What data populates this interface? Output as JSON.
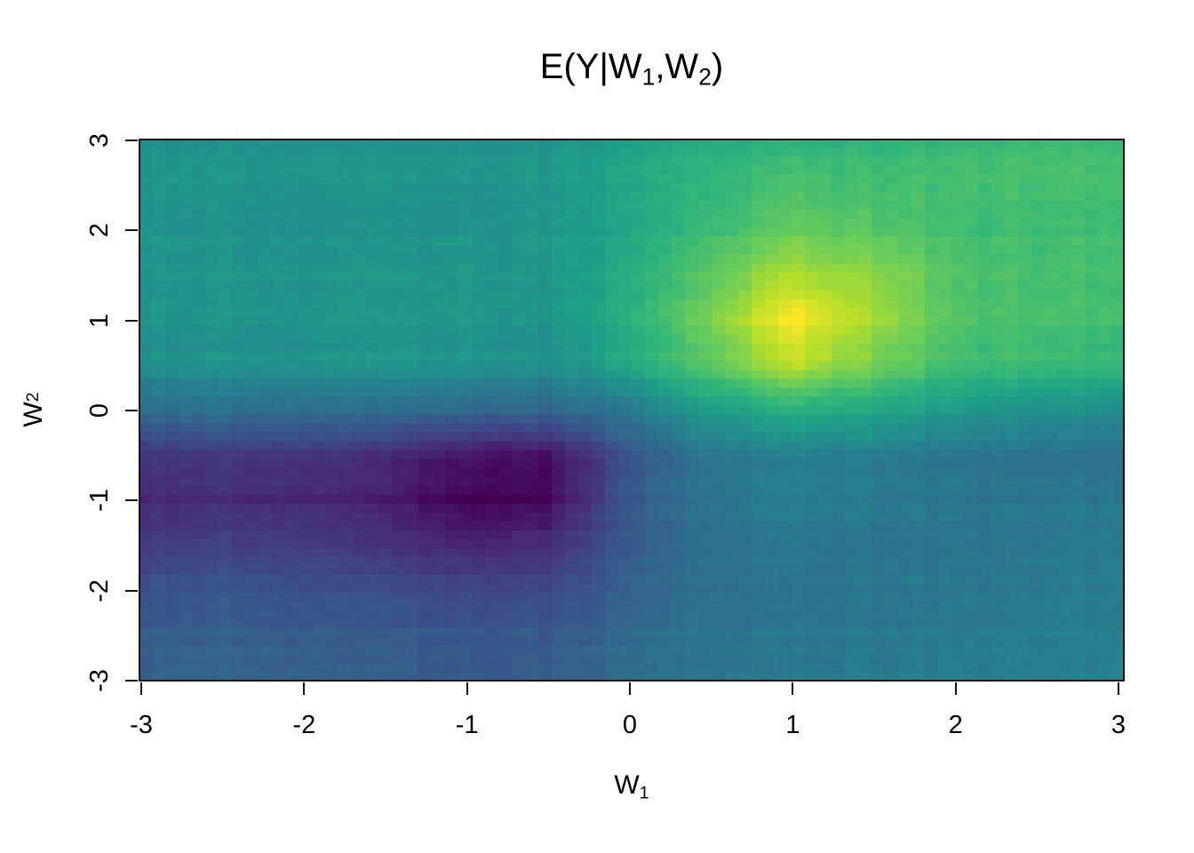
{
  "figure": {
    "background": "#ffffff",
    "title": {
      "pre": "E(Y|W",
      "sub1": "1",
      "mid": ",W",
      "sub2": "2",
      "post": ")"
    },
    "x_axis": {
      "label_pre": "W",
      "label_sub": "1"
    },
    "y_axis": {
      "label_pre": "W",
      "label_sub": "2"
    }
  },
  "chart_data": {
    "type": "heatmap",
    "title": "E(Y|W1,W2)",
    "xlabel": "W1",
    "ylabel": "W2",
    "x_range": [
      -3,
      3
    ],
    "y_range": [
      -3,
      3
    ],
    "x_ticks": [
      -3,
      -2,
      -1,
      0,
      1,
      2,
      3
    ],
    "y_ticks": [
      -3,
      -2,
      -1,
      0,
      1,
      2,
      3
    ],
    "grid": false,
    "legend": "none",
    "axis_color": "#141414",
    "colormap": {
      "name": "viridis",
      "stops": [
        "#440154",
        "#482878",
        "#3e4989",
        "#31688e",
        "#26828e",
        "#1f9e89",
        "#35b779",
        "#6ece58",
        "#b5de2b",
        "#fde725"
      ]
    },
    "z_scale": {
      "min": -2.0,
      "max": 1.9,
      "zero_color": "#21938b"
    },
    "max_point": {
      "x": 0.95,
      "y": 1.0,
      "z": 1.9
    },
    "min_point": {
      "x": -0.9,
      "y": -0.8,
      "z": -2.0
    },
    "grid_x": [
      -3,
      -2.5,
      -2,
      -1.5,
      -1,
      -0.5,
      0,
      0.5,
      1,
      1.5,
      2,
      2.5,
      3
    ],
    "grid_y_top_to_bottom": [
      3,
      2.5,
      2,
      1.5,
      1,
      0.5,
      0,
      -0.5,
      -1,
      -1.5,
      -2,
      -2.5,
      -3
    ],
    "z_rows_top_to_bottom": [
      [
        0.0,
        0.02,
        0.05,
        0.0,
        0.02,
        0.05,
        0.2,
        0.45,
        0.55,
        0.55,
        0.65,
        0.7,
        0.7
      ],
      [
        0.02,
        0.05,
        0.0,
        0.03,
        0.0,
        0.05,
        0.25,
        0.55,
        0.75,
        0.7,
        0.7,
        0.72,
        0.7
      ],
      [
        0.05,
        0.0,
        0.03,
        0.0,
        0.05,
        0.08,
        0.3,
        0.7,
        1.0,
        0.9,
        0.72,
        0.7,
        0.72
      ],
      [
        0.0,
        0.03,
        0.0,
        0.04,
        0.03,
        0.05,
        0.35,
        0.9,
        1.4,
        1.2,
        0.78,
        0.7,
        0.7
      ],
      [
        0.0,
        0.0,
        0.04,
        0.03,
        0.06,
        0.0,
        0.4,
        1.1,
        1.9,
        1.35,
        0.8,
        0.74,
        0.7
      ],
      [
        -0.05,
        0.0,
        0.0,
        0.03,
        0.0,
        -0.05,
        0.3,
        0.9,
        1.5,
        1.05,
        0.68,
        0.62,
        0.58
      ],
      [
        -0.6,
        -0.58,
        -0.6,
        -0.65,
        -0.7,
        -0.75,
        -0.45,
        0.15,
        0.4,
        0.3,
        0.05,
        -0.05,
        -0.1
      ],
      [
        -1.35,
        -1.32,
        -1.35,
        -1.5,
        -1.75,
        -1.8,
        -0.95,
        -0.4,
        -0.28,
        -0.32,
        -0.45,
        -0.5,
        -0.52
      ],
      [
        -1.55,
        -1.5,
        -1.55,
        -1.7,
        -2.0,
        -1.92,
        -0.95,
        -0.5,
        -0.35,
        -0.4,
        -0.48,
        -0.48,
        -0.45
      ],
      [
        -1.3,
        -1.25,
        -1.3,
        -1.45,
        -1.6,
        -1.5,
        -0.9,
        -0.55,
        -0.45,
        -0.5,
        -0.5,
        -0.45,
        -0.4
      ],
      [
        -1.0,
        -0.95,
        -1.0,
        -1.05,
        -1.15,
        -1.1,
        -0.8,
        -0.55,
        -0.5,
        -0.45,
        -0.45,
        -0.4,
        -0.35
      ],
      [
        -0.85,
        -0.8,
        -0.85,
        -0.9,
        -0.95,
        -0.9,
        -0.7,
        -0.5,
        -0.45,
        -0.42,
        -0.4,
        -0.35,
        -0.32
      ],
      [
        -0.8,
        -0.75,
        -0.8,
        -0.85,
        -0.9,
        -0.85,
        -0.65,
        -0.5,
        -0.45,
        -0.4,
        -0.36,
        -0.34,
        -0.3
      ]
    ]
  }
}
